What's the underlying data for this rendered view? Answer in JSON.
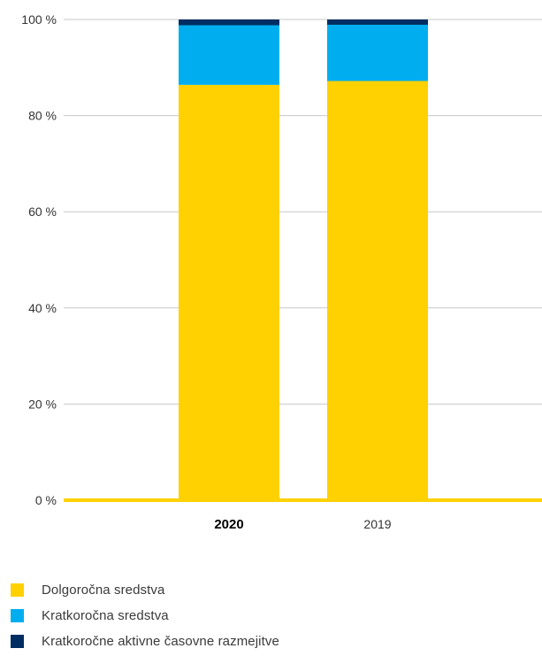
{
  "chart_data": {
    "type": "bar",
    "stacked": true,
    "categories": [
      "2020",
      "2019"
    ],
    "highlight_category": "2020",
    "series": [
      {
        "name": "Dolgoročna sredstva",
        "color": "#FFD100",
        "values": [
          86.4,
          87.2
        ]
      },
      {
        "name": "Kratkoročna sredstva",
        "color": "#00AEEF",
        "values": [
          12.4,
          11.7
        ]
      },
      {
        "name": "Kratkoročne aktivne časovne razmejitve",
        "color": "#002D62",
        "values": [
          1.2,
          1.1
        ]
      }
    ],
    "y_ticks": [
      "0 %",
      "20 %",
      "40 %",
      "60 %",
      "80 %",
      "100 %"
    ],
    "y_tick_values": [
      0,
      20,
      40,
      60,
      80,
      100
    ],
    "ylim": [
      0,
      100
    ],
    "grid": true,
    "legend_position": "bottom-left",
    "colors": {
      "grid": "#c8c8c8",
      "baseline": "#FFD100",
      "text": "#333333"
    }
  }
}
